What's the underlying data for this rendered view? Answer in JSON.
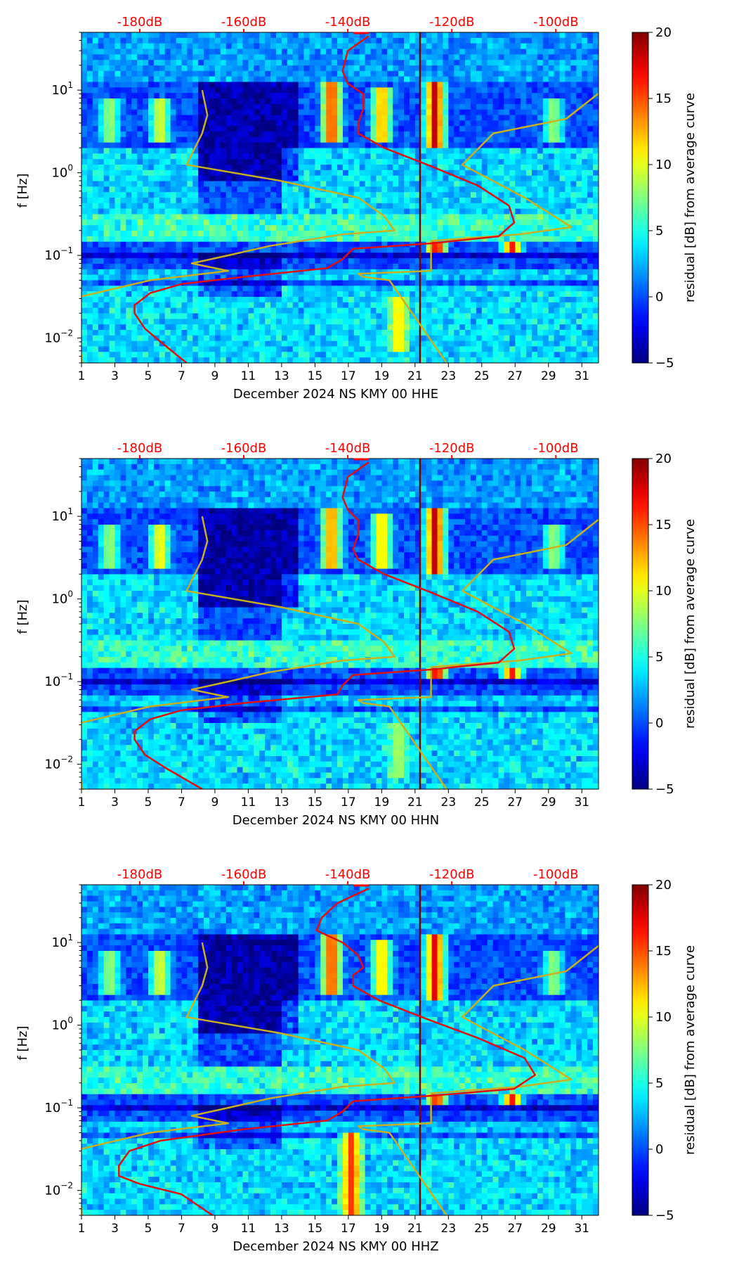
{
  "colors": {
    "top_axis_labels": "#ff0000",
    "noise_model_curve": "#c8b020",
    "psd_curve": "#e01010",
    "marker_line": "#7a0000",
    "colormap": [
      "#00007f",
      "#0000ff",
      "#00ffff",
      "#ffff00",
      "#ff0000",
      "#7f0000"
    ]
  },
  "chart_data": [
    {
      "type": "heatmap",
      "xlabel": "December 2024 NS KMY 00 HHE",
      "ylabel": "f [Hz]",
      "x_ticks": [
        "1",
        "3",
        "5",
        "7",
        "9",
        "11",
        "13",
        "15",
        "17",
        "19",
        "21",
        "23",
        "25",
        "27",
        "29",
        "31"
      ],
      "xlim": [
        1,
        32
      ],
      "y_scale": "log",
      "ylim": [
        0.005,
        50
      ],
      "y_ticks": [
        {
          "mantissa": "10",
          "exp": "−2"
        },
        {
          "mantissa": "10",
          "exp": "−1"
        },
        {
          "mantissa": "10",
          "exp": "0"
        },
        {
          "mantissa": "10",
          "exp": "1"
        }
      ],
      "top_axis_ticks": [
        "-180dB",
        "-160dB",
        "-140dB",
        "-120dB",
        "-100dB"
      ],
      "top_axis_range_db": [
        -191.2,
        -91.8
      ],
      "colorbar": {
        "label": "residual [dB] from average curve",
        "ticks": [
          "−5",
          "0",
          "5",
          "10",
          "15",
          "20"
        ],
        "range": [
          -5,
          20
        ]
      },
      "marker_day": 21.3,
      "bright_bands": [
        {
          "day": 16.0,
          "f_low": 2.5,
          "f_high": 12,
          "level": 17
        },
        {
          "day": 19.0,
          "f_low": 2.5,
          "f_high": 10,
          "level": 14
        },
        {
          "day": 22.2,
          "f_low": 2.0,
          "f_high": 12,
          "level": 19
        },
        {
          "day": 5.7,
          "f_low": 2.5,
          "f_high": 8,
          "level": 11
        },
        {
          "day": 2.7,
          "f_low": 2.5,
          "f_high": 8,
          "level": 9
        },
        {
          "day": 29.3,
          "f_low": 2.5,
          "f_high": 8,
          "level": 9
        },
        {
          "day": 22.3,
          "f_low": 0.11,
          "f_high": 0.14,
          "level": 19
        },
        {
          "day": 26.8,
          "f_low": 0.11,
          "f_high": 0.14,
          "level": 17
        },
        {
          "day": 20.0,
          "f_low": 0.007,
          "f_high": 0.03,
          "level": 12
        }
      ],
      "psd_curve_db_vs_hz": [
        [
          -136,
          45
        ],
        [
          -140,
          30
        ],
        [
          -141,
          17
        ],
        [
          -140,
          12
        ],
        [
          -137,
          9
        ],
        [
          -137,
          6
        ],
        [
          -138,
          4
        ],
        [
          -138,
          3
        ],
        [
          -133,
          2
        ],
        [
          -124,
          1.2
        ],
        [
          -115,
          0.7
        ],
        [
          -109,
          0.4
        ],
        [
          -108,
          0.25
        ],
        [
          -111,
          0.17
        ],
        [
          -124,
          0.14
        ],
        [
          -139,
          0.12
        ],
        [
          -141,
          0.09
        ],
        [
          -144,
          0.07
        ],
        [
          -160,
          0.055
        ],
        [
          -172,
          0.045
        ],
        [
          -178,
          0.035
        ],
        [
          -181,
          0.025
        ],
        [
          -181,
          0.02
        ],
        [
          -179,
          0.013
        ],
        [
          -176,
          0.009
        ],
        [
          -171,
          0.005
        ]
      ],
      "noise_model_db_vs_hz": [
        [
          -168,
          10
        ],
        [
          -167,
          5
        ],
        [
          -168,
          3
        ],
        [
          -171,
          1.25
        ],
        [
          -153,
          0.8
        ],
        [
          -138,
          0.5
        ],
        [
          -133,
          0.3
        ],
        [
          -131,
          0.2
        ],
        [
          -141,
          0.18
        ],
        [
          -155,
          0.13
        ],
        [
          -163,
          0.1
        ],
        [
          -170,
          0.08
        ],
        [
          -163,
          0.065
        ],
        [
          -178,
          0.05
        ],
        [
          -193,
          0.03
        ],
        [
          -195,
          0.02
        ],
        [
          -194,
          0.015
        ],
        [
          -192,
          0.012
        ],
        [
          -191,
          0.005
        ]
      ],
      "noise_model_high_db_vs_hz": [
        [
          -91,
          10
        ],
        [
          -98,
          4.5
        ],
        [
          -112,
          3
        ],
        [
          -118,
          1.25
        ],
        [
          -106,
          0.5
        ],
        [
          -97,
          0.22
        ],
        [
          -107,
          0.18
        ],
        [
          -124,
          0.15
        ],
        [
          -124,
          0.065
        ],
        [
          -138,
          0.06
        ],
        [
          -137,
          0.055
        ],
        [
          -132,
          0.05
        ],
        [
          -121,
          0.005
        ]
      ]
    },
    {
      "type": "heatmap",
      "xlabel": "December 2024 NS KMY 00 HHN",
      "ylabel": "f [Hz]",
      "x_ticks": [
        "1",
        "3",
        "5",
        "7",
        "9",
        "11",
        "13",
        "15",
        "17",
        "19",
        "21",
        "23",
        "25",
        "27",
        "29",
        "31"
      ],
      "xlim": [
        1,
        32
      ],
      "y_scale": "log",
      "ylim": [
        0.005,
        50
      ],
      "y_ticks": [
        {
          "mantissa": "10",
          "exp": "−2"
        },
        {
          "mantissa": "10",
          "exp": "−1"
        },
        {
          "mantissa": "10",
          "exp": "0"
        },
        {
          "mantissa": "10",
          "exp": "1"
        }
      ],
      "top_axis_ticks": [
        "-180dB",
        "-160dB",
        "-140dB",
        "-120dB",
        "-100dB"
      ],
      "top_axis_range_db": [
        -191.2,
        -91.8
      ],
      "colorbar": {
        "label": "residual [dB] from average curve",
        "ticks": [
          "−5",
          "0",
          "5",
          "10",
          "15",
          "20"
        ],
        "range": [
          -5,
          20
        ]
      },
      "marker_day": 21.3,
      "bright_bands": [
        {
          "day": 16.0,
          "f_low": 2.5,
          "f_high": 12,
          "level": 15
        },
        {
          "day": 19.0,
          "f_low": 2.5,
          "f_high": 10,
          "level": 13
        },
        {
          "day": 22.2,
          "f_low": 2.0,
          "f_high": 12,
          "level": 19
        },
        {
          "day": 5.7,
          "f_low": 2.5,
          "f_high": 8,
          "level": 12
        },
        {
          "day": 2.7,
          "f_low": 2.5,
          "f_high": 8,
          "level": 9
        },
        {
          "day": 29.3,
          "f_low": 2.5,
          "f_high": 8,
          "level": 9
        },
        {
          "day": 22.3,
          "f_low": 0.11,
          "f_high": 0.14,
          "level": 19
        },
        {
          "day": 26.8,
          "f_low": 0.11,
          "f_high": 0.14,
          "level": 17
        },
        {
          "day": 20.0,
          "f_low": 0.007,
          "f_high": 0.03,
          "level": 9
        }
      ],
      "psd_curve_db_vs_hz": [
        [
          -136,
          45
        ],
        [
          -140,
          30
        ],
        [
          -141,
          17
        ],
        [
          -140,
          12
        ],
        [
          -138,
          9
        ],
        [
          -138,
          6
        ],
        [
          -139,
          4
        ],
        [
          -138,
          3
        ],
        [
          -133,
          2
        ],
        [
          -124,
          1.2
        ],
        [
          -115,
          0.7
        ],
        [
          -109,
          0.4
        ],
        [
          -108,
          0.25
        ],
        [
          -111,
          0.17
        ],
        [
          -124,
          0.14
        ],
        [
          -139,
          0.12
        ],
        [
          -141,
          0.09
        ],
        [
          -142,
          0.07
        ],
        [
          -160,
          0.055
        ],
        [
          -172,
          0.045
        ],
        [
          -178,
          0.035
        ],
        [
          -181,
          0.025
        ],
        [
          -181,
          0.02
        ],
        [
          -179,
          0.013
        ],
        [
          -175,
          0.009
        ],
        [
          -168,
          0.005
        ]
      ],
      "noise_model_db_vs_hz": [
        [
          -168,
          10
        ],
        [
          -167,
          5
        ],
        [
          -168,
          3
        ],
        [
          -171,
          1.25
        ],
        [
          -153,
          0.8
        ],
        [
          -138,
          0.5
        ],
        [
          -133,
          0.3
        ],
        [
          -131,
          0.2
        ],
        [
          -141,
          0.18
        ],
        [
          -155,
          0.13
        ],
        [
          -163,
          0.1
        ],
        [
          -170,
          0.08
        ],
        [
          -163,
          0.065
        ],
        [
          -178,
          0.05
        ],
        [
          -193,
          0.03
        ],
        [
          -195,
          0.02
        ],
        [
          -194,
          0.015
        ],
        [
          -192,
          0.012
        ],
        [
          -191,
          0.005
        ]
      ],
      "noise_model_high_db_vs_hz": [
        [
          -91,
          10
        ],
        [
          -98,
          4.5
        ],
        [
          -112,
          3
        ],
        [
          -118,
          1.25
        ],
        [
          -106,
          0.5
        ],
        [
          -97,
          0.22
        ],
        [
          -107,
          0.18
        ],
        [
          -124,
          0.15
        ],
        [
          -124,
          0.065
        ],
        [
          -138,
          0.06
        ],
        [
          -137,
          0.055
        ],
        [
          -132,
          0.05
        ],
        [
          -121,
          0.005
        ]
      ]
    },
    {
      "type": "heatmap",
      "xlabel": "December 2024 NS KMY 00 HHZ",
      "ylabel": "f [Hz]",
      "x_ticks": [
        "1",
        "3",
        "5",
        "7",
        "9",
        "11",
        "13",
        "15",
        "17",
        "19",
        "21",
        "23",
        "25",
        "27",
        "29",
        "31"
      ],
      "xlim": [
        1,
        32
      ],
      "y_scale": "log",
      "ylim": [
        0.005,
        50
      ],
      "y_ticks": [
        {
          "mantissa": "10",
          "exp": "−2"
        },
        {
          "mantissa": "10",
          "exp": "−1"
        },
        {
          "mantissa": "10",
          "exp": "0"
        },
        {
          "mantissa": "10",
          "exp": "1"
        }
      ],
      "top_axis_ticks": [
        "-180dB",
        "-160dB",
        "-140dB",
        "-120dB",
        "-100dB"
      ],
      "top_axis_range_db": [
        -191.2,
        -91.8
      ],
      "colorbar": {
        "label": "residual [dB] from average curve",
        "ticks": [
          "−5",
          "0",
          "5",
          "10",
          "15",
          "20"
        ],
        "range": [
          -5,
          20
        ]
      },
      "marker_day": 21.3,
      "bright_bands": [
        {
          "day": 16.0,
          "f_low": 2.5,
          "f_high": 12,
          "level": 17
        },
        {
          "day": 19.0,
          "f_low": 2.5,
          "f_high": 10,
          "level": 13
        },
        {
          "day": 22.2,
          "f_low": 2.0,
          "f_high": 12,
          "level": 18
        },
        {
          "day": 5.7,
          "f_low": 2.5,
          "f_high": 8,
          "level": 11
        },
        {
          "day": 2.7,
          "f_low": 2.5,
          "f_high": 8,
          "level": 9
        },
        {
          "day": 29.3,
          "f_low": 2.5,
          "f_high": 8,
          "level": 9
        },
        {
          "day": 22.3,
          "f_low": 0.11,
          "f_high": 0.14,
          "level": 18
        },
        {
          "day": 26.8,
          "f_low": 0.11,
          "f_high": 0.14,
          "level": 17
        },
        {
          "day": 17.2,
          "f_low": 0.005,
          "f_high": 0.05,
          "level": 16
        }
      ],
      "psd_curve_db_vs_hz": [
        [
          -136,
          45
        ],
        [
          -142,
          30
        ],
        [
          -145,
          20
        ],
        [
          -146,
          14
        ],
        [
          -141,
          10
        ],
        [
          -138,
          7
        ],
        [
          -137,
          5
        ],
        [
          -139,
          4
        ],
        [
          -139,
          3
        ],
        [
          -134,
          2
        ],
        [
          -125,
          1.2
        ],
        [
          -115,
          0.7
        ],
        [
          -106,
          0.4
        ],
        [
          -104,
          0.25
        ],
        [
          -108,
          0.17
        ],
        [
          -124,
          0.14
        ],
        [
          -139,
          0.12
        ],
        [
          -141,
          0.09
        ],
        [
          -144,
          0.07
        ],
        [
          -160,
          0.055
        ],
        [
          -176,
          0.04
        ],
        [
          -182,
          0.03
        ],
        [
          -184,
          0.02
        ],
        [
          -184,
          0.015
        ],
        [
          -180,
          0.012
        ],
        [
          -172,
          0.009
        ],
        [
          -166,
          0.005
        ]
      ],
      "noise_model_db_vs_hz": [
        [
          -168,
          10
        ],
        [
          -167,
          5
        ],
        [
          -168,
          3
        ],
        [
          -171,
          1.25
        ],
        [
          -153,
          0.8
        ],
        [
          -138,
          0.5
        ],
        [
          -133,
          0.3
        ],
        [
          -131,
          0.2
        ],
        [
          -141,
          0.18
        ],
        [
          -155,
          0.13
        ],
        [
          -163,
          0.1
        ],
        [
          -170,
          0.08
        ],
        [
          -163,
          0.065
        ],
        [
          -178,
          0.05
        ],
        [
          -193,
          0.03
        ],
        [
          -195,
          0.02
        ],
        [
          -194,
          0.015
        ],
        [
          -192,
          0.012
        ],
        [
          -191,
          0.005
        ]
      ],
      "noise_model_high_db_vs_hz": [
        [
          -91,
          10
        ],
        [
          -98,
          4.5
        ],
        [
          -112,
          3
        ],
        [
          -118,
          1.25
        ],
        [
          -106,
          0.5
        ],
        [
          -97,
          0.22
        ],
        [
          -107,
          0.18
        ],
        [
          -124,
          0.15
        ],
        [
          -124,
          0.065
        ],
        [
          -138,
          0.06
        ],
        [
          -137,
          0.055
        ],
        [
          -132,
          0.05
        ],
        [
          -121,
          0.005
        ]
      ]
    }
  ]
}
